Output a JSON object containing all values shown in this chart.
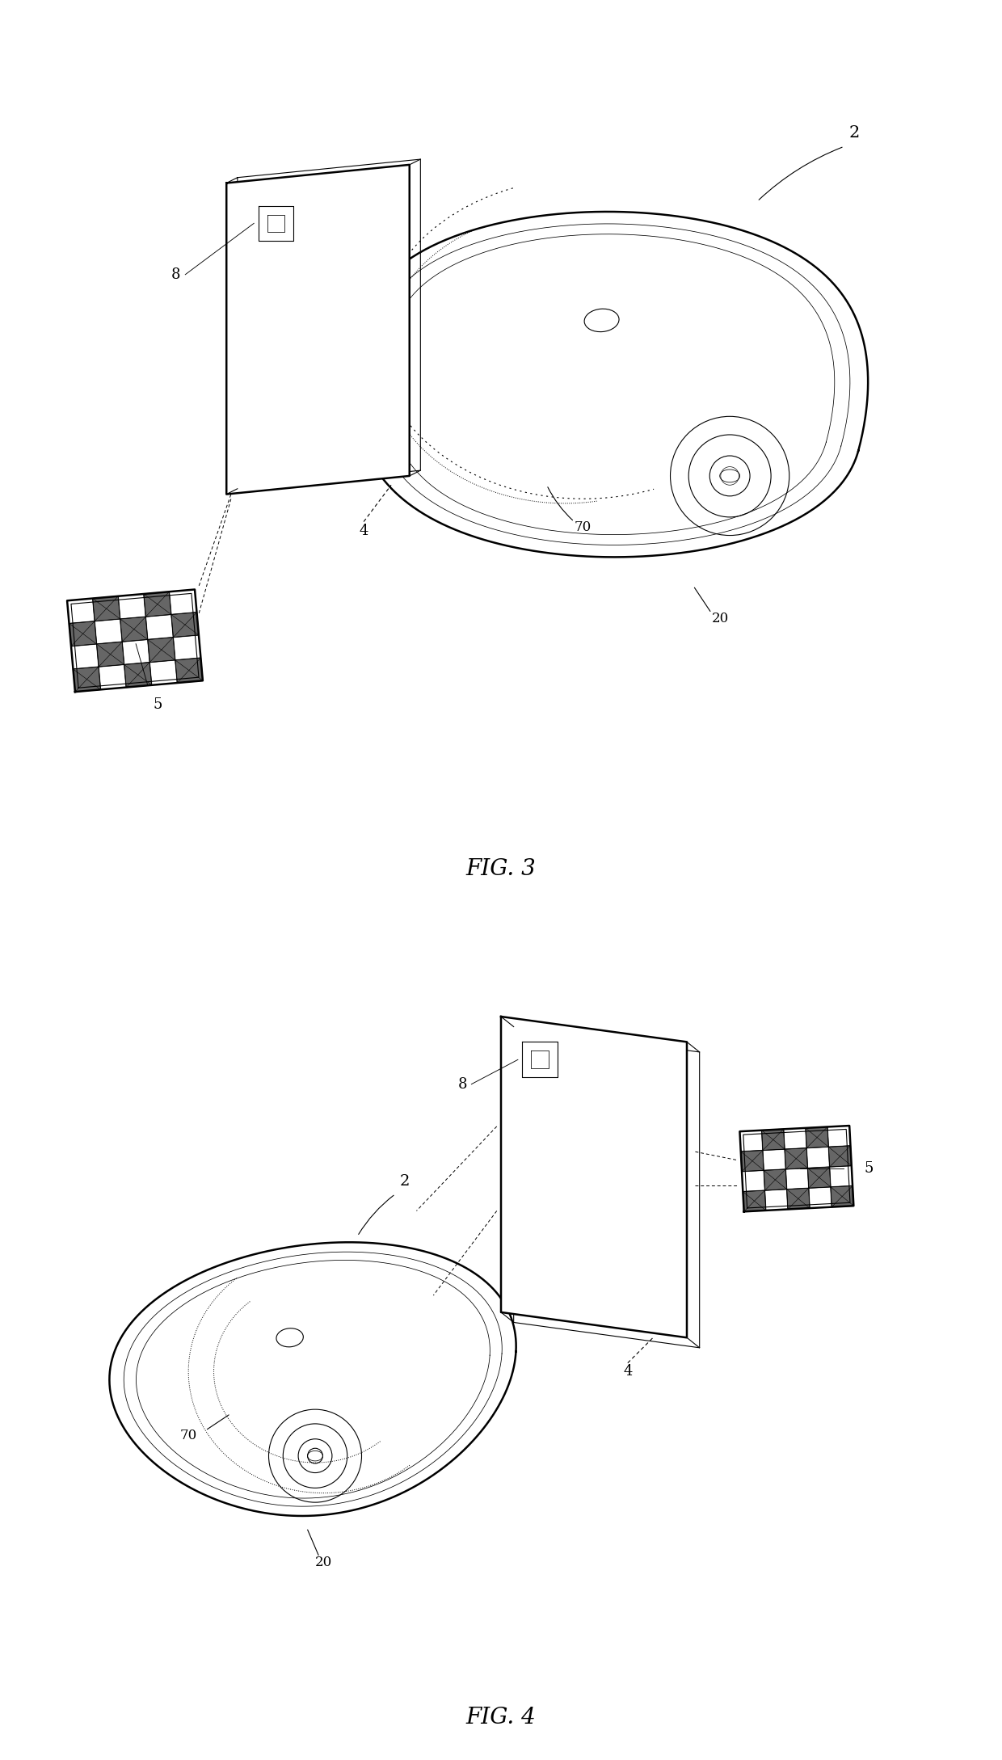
{
  "fig3_label": "FIG. 3",
  "fig4_label": "FIG. 4",
  "background_color": "#ffffff",
  "line_color": "#000000",
  "label_fontsize": 13,
  "caption_fontsize": 20,
  "fig_width": 12.4,
  "fig_height": 21.78
}
